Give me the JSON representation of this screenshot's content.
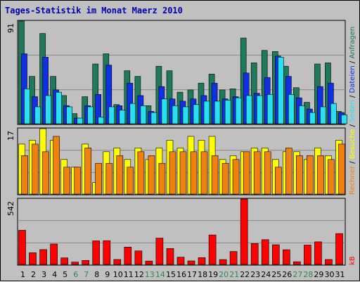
{
  "chart_data": {
    "type": "bar",
    "title": "Tages-Statistik im Monat Maerz 2010",
    "colors": {
      "background": "#c0c0c0",
      "title": "#0000b0",
      "gridline": "#888888",
      "anfragen": "#1e7a5a",
      "dateien": "#1030e8",
      "seiten": "#27e0f0",
      "besuche": "#ffff00",
      "rechner": "#f08010",
      "kb": "#ff0000",
      "weekday_label": "#000000",
      "weekend_label": "#2a8a55"
    },
    "days": [
      {
        "label": "1",
        "weekend": false
      },
      {
        "label": "2",
        "weekend": false
      },
      {
        "label": "3",
        "weekend": false
      },
      {
        "label": "4",
        "weekend": false
      },
      {
        "label": "5",
        "weekend": false
      },
      {
        "label": "6",
        "weekend": true
      },
      {
        "label": "7",
        "weekend": true
      },
      {
        "label": "8",
        "weekend": false
      },
      {
        "label": "9",
        "weekend": false
      },
      {
        "label": "10",
        "weekend": false
      },
      {
        "label": "11",
        "weekend": false
      },
      {
        "label": "12",
        "weekend": false
      },
      {
        "label": "13",
        "weekend": true
      },
      {
        "label": "14",
        "weekend": true
      },
      {
        "label": "15",
        "weekend": false
      },
      {
        "label": "16",
        "weekend": false
      },
      {
        "label": "17",
        "weekend": false
      },
      {
        "label": "18",
        "weekend": false
      },
      {
        "label": "19",
        "weekend": false
      },
      {
        "label": "20",
        "weekend": true
      },
      {
        "label": "21",
        "weekend": true
      },
      {
        "label": "22",
        "weekend": false
      },
      {
        "label": "23",
        "weekend": false
      },
      {
        "label": "24",
        "weekend": false
      },
      {
        "label": "25",
        "weekend": false
      },
      {
        "label": "26",
        "weekend": false
      },
      {
        "label": "27",
        "weekend": true
      },
      {
        "label": "28",
        "weekend": true
      },
      {
        "label": "29",
        "weekend": false
      },
      {
        "label": "30",
        "weekend": false
      },
      {
        "label": "31",
        "weekend": false
      }
    ],
    "panels": [
      {
        "id": "requests",
        "ymax": 91,
        "ymax_label": "91",
        "series": [
          {
            "name": "Anfragen",
            "color": "#1e7a5a",
            "values": [
              91,
              42,
              80,
              42,
              25,
              9,
              24,
              53,
              62,
              17,
              47,
              42,
              16,
              51,
              47,
              28,
              30,
              36,
              44,
              30,
              31,
              76,
              54,
              65,
              64,
              51,
              32,
              19,
              53,
              54,
              11
            ]
          },
          {
            "name": "Dateien",
            "color": "#1030e8",
            "values": [
              62,
              24,
              59,
              30,
              16,
              5,
              16,
              26,
              52,
              16,
              36,
              25,
              11,
              33,
              22,
              20,
              22,
              25,
              36,
              22,
              24,
              45,
              27,
              41,
              60,
              42,
              23,
              13,
              33,
              36,
              10
            ]
          },
          {
            "name": "Seiten",
            "color": "#27e0f0",
            "values": [
              31,
              15,
              25,
              28,
              15,
              5,
              15,
              6,
              15,
              12,
              18,
              16,
              10,
              22,
              16,
              15,
              17,
              20,
              20,
              21,
              23,
              25,
              25,
              26,
              59,
              26,
              16,
              10,
              15,
              18,
              8
            ]
          }
        ]
      },
      {
        "id": "visits",
        "ymax": 17,
        "ymax_label": "17",
        "series": [
          {
            "name": "Besuche",
            "color": "#ffff00",
            "values": [
              13,
              14,
              17,
              14,
              9,
              7,
              13,
              3,
              11,
              12,
              9,
              12,
              9,
              12,
              14,
              12,
              15,
              14,
              15,
              9,
              10,
              11,
              12,
              12,
              9,
              11,
              11,
              9,
              12,
              10,
              14
            ]
          },
          {
            "name": "Rechner",
            "color": "#f08010",
            "values": [
              10,
              13,
              11,
              15,
              7,
              7,
              12,
              8,
              8,
              10,
              7,
              11,
              10,
              8,
              11,
              11,
              11,
              11,
              10,
              8,
              9,
              11,
              11,
              11,
              7,
              12,
              10,
              10,
              10,
              9,
              13
            ]
          }
        ]
      },
      {
        "id": "kbytes",
        "ymax": 542,
        "ymax_label": "542",
        "series": [
          {
            "name": "kB",
            "color": "#ff0000",
            "values": [
              283,
              97,
              123,
              169,
              54,
              19,
              33,
              195,
              197,
              41,
              144,
              112,
              28,
              218,
              132,
              60,
              29,
              56,
              244,
              40,
              107,
              542,
              173,
              205,
              163,
              122,
              22,
              160,
              187,
              41,
              256
            ]
          }
        ]
      }
    ],
    "right_labels": [
      {
        "text": "Anfragen",
        "color": "#1e7a5a"
      },
      {
        "text": " / ",
        "color": "#000000"
      },
      {
        "text": "Dateien",
        "color": "#1030e8"
      },
      {
        "text": " / ",
        "color": "#000000"
      },
      {
        "text": "Seiten",
        "color": "#27e0f0"
      },
      {
        "text": " / ",
        "color": "#000000"
      },
      {
        "text": "Besuche",
        "color": "#ffff00"
      },
      {
        "text": " / ",
        "color": "#000000"
      },
      {
        "text": "Rechner",
        "color": "#f08010"
      },
      {
        "text": "kB",
        "color": "#ff0000"
      }
    ]
  }
}
